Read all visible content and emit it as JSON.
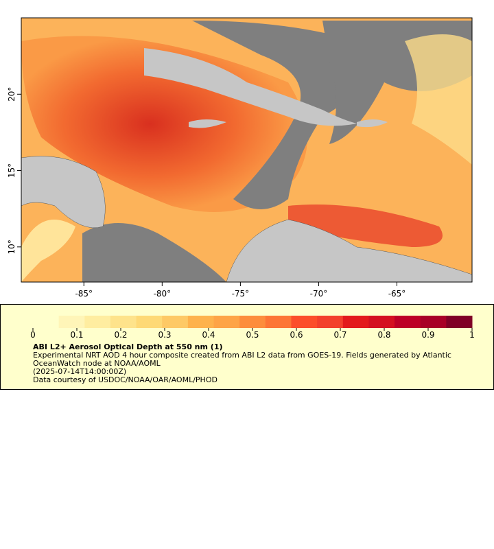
{
  "map": {
    "xaxis": {
      "lim": [
        -89,
        -60.2
      ],
      "ticks": [
        {
          "value": -85,
          "label": "-85°"
        },
        {
          "value": -80,
          "label": "-80°"
        },
        {
          "value": -75,
          "label": "-75°"
        },
        {
          "value": -70,
          "label": "-70°"
        },
        {
          "value": -65,
          "label": "-65°"
        }
      ]
    },
    "yaxis": {
      "lim": [
        7.7,
        25
      ],
      "ticks": [
        {
          "value": 10,
          "label": "10°"
        },
        {
          "value": 15,
          "label": "15°"
        },
        {
          "value": 20,
          "label": "20°"
        }
      ]
    }
  },
  "colorbar": {
    "lim": [
      0,
      1
    ],
    "ticks": [
      0,
      0.1,
      0.2,
      0.3,
      0.4,
      0.5,
      0.6,
      0.7,
      0.8,
      0.9,
      1
    ],
    "colors": [
      "#ffffcc",
      "#fff5b8",
      "#ffeda0",
      "#fee38b",
      "#fed976",
      "#fec965",
      "#feb24c",
      "#fea446",
      "#fd8d3c",
      "#fd7535",
      "#fc4e2a",
      "#f3402c",
      "#e31a1c",
      "#d41020",
      "#bd0026",
      "#a80026",
      "#800026"
    ]
  },
  "legend": {
    "title": "ABI L2+ Aerosol Optical Depth at 550 nm (1)",
    "description": "Experimental NRT AOD 4 hour composite created from ABI L2 data from GOES-19. Fields generated by Atlantic OceanWatch node at NOAA/AOML",
    "time": "(2025-07-14T14:00:00Z)",
    "credit": "Data courtesy of USDOC/NOAA/OAR/AOML/PHOD"
  }
}
